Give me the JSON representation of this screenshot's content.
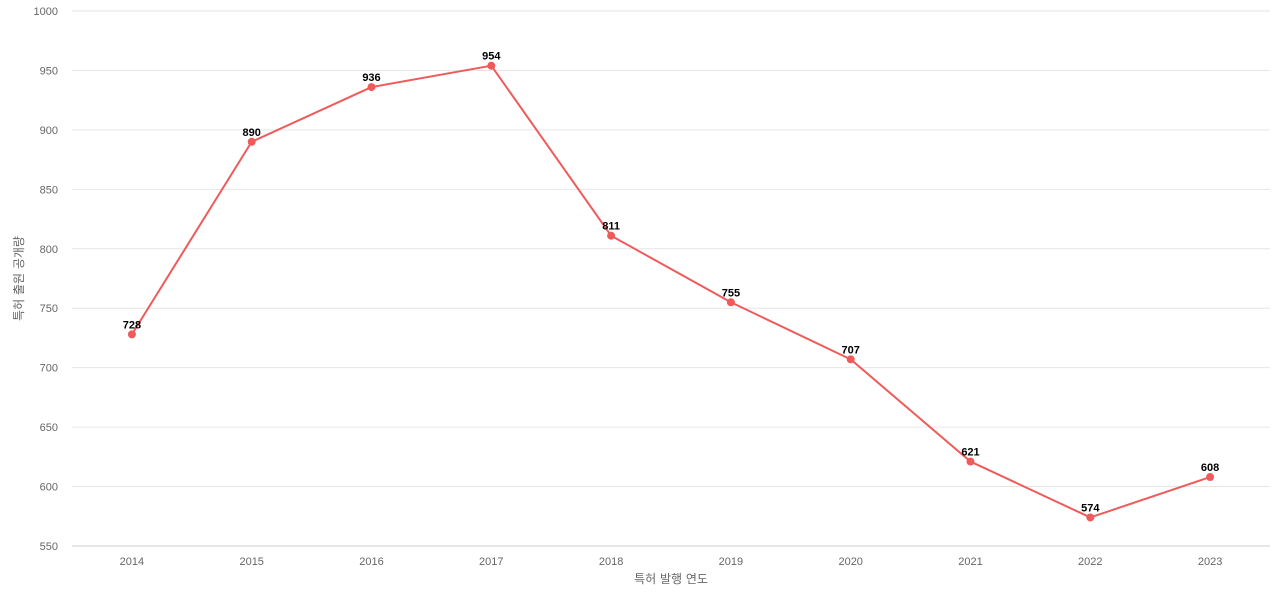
{
  "chart_data": {
    "type": "line",
    "title": "",
    "xlabel": "특허 발행 연도",
    "ylabel": "특허 출원 공개량",
    "categories": [
      "2014",
      "2015",
      "2016",
      "2017",
      "2018",
      "2019",
      "2020",
      "2021",
      "2022",
      "2023"
    ],
    "series": [
      {
        "values": [
          728,
          890,
          936,
          954,
          811,
          755,
          707,
          621,
          574,
          608
        ],
        "color": "#ef5a5a"
      }
    ],
    "ylim": [
      550,
      1000
    ],
    "yticks": [
      550,
      600,
      650,
      700,
      750,
      800,
      850,
      900,
      950,
      1000
    ],
    "grid": true,
    "legend": "none",
    "data_labels": true
  }
}
